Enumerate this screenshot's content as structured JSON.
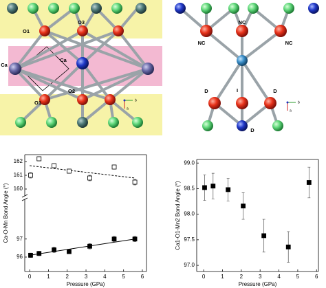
{
  "structures": [
    {
      "labels": [
        "O1",
        "O3",
        "Ca",
        "Ca",
        "O2",
        "O1"
      ],
      "axis_labels": [
        "b",
        "a"
      ]
    },
    {
      "labels": [
        "NC",
        "NC",
        "NC",
        "I",
        "D",
        "D",
        "D"
      ],
      "axis_labels": [
        "b",
        "a"
      ]
    }
  ],
  "chart_data": [
    {
      "type": "scatter",
      "xlabel": "Pressure (GPa)",
      "ylabel": "Ca-O-Mn Bond Angle (°)",
      "xlim": [
        -0.26,
        6.22
      ],
      "xticks": [
        0,
        1,
        2,
        3,
        4,
        5,
        6
      ],
      "y_segments": [
        {
          "ylim": [
            159.5,
            162.5
          ],
          "yticks": [
            160,
            161,
            162
          ]
        },
        {
          "ylim": [
            95.2,
            99.2
          ],
          "yticks": [
            96,
            97
          ]
        }
      ],
      "series": [
        {
          "marker": "open-square",
          "color": "#000000",
          "segment": 0,
          "x": [
            0.05,
            0.5,
            1.3,
            2.1,
            3.2,
            4.5,
            5.6
          ],
          "values": [
            161.0,
            162.2,
            161.7,
            161.3,
            160.8,
            161.6,
            160.5
          ],
          "errors": [
            0.2,
            0.15,
            0.15,
            0.15,
            0.2,
            0.15,
            0.2
          ],
          "fit": {
            "style": "dashed",
            "x": [
              0,
              5.6
            ],
            "values": [
              161.7,
              160.8
            ]
          }
        },
        {
          "marker": "filled-square",
          "color": "#000000",
          "segment": 1,
          "x": [
            0.05,
            0.5,
            1.3,
            2.1,
            3.2,
            4.5,
            5.6
          ],
          "values": [
            96.1,
            96.2,
            96.4,
            96.3,
            96.6,
            97.0,
            97.0
          ],
          "errors": [
            0.12,
            0.12,
            0.15,
            0.1,
            0.15,
            0.15,
            0.15
          ],
          "fit": {
            "style": "solid",
            "x": [
              0,
              5.6
            ],
            "values": [
              96.1,
              97.0
            ]
          }
        }
      ]
    },
    {
      "type": "scatter",
      "xlabel": "Pressure (GPa)",
      "ylabel": "Ca1-O1-Mn2 Bond Angle (°)",
      "xlim": [
        -0.37,
        6.1
      ],
      "xticks": [
        0,
        1,
        2,
        3,
        4,
        5,
        6
      ],
      "ylim": [
        96.88,
        99.07
      ],
      "yticks": [
        {
          "value": 97,
          "label": "97.0"
        },
        {
          "value": 97.5,
          "label": "97.5"
        },
        {
          "value": 98,
          "label": "98.0"
        },
        {
          "value": 98.5,
          "label": "98.5"
        },
        {
          "value": 99,
          "label": "99.0"
        }
      ],
      "series": [
        {
          "marker": "filled-square",
          "color": "#000000",
          "x": [
            0.05,
            0.5,
            1.3,
            2.1,
            3.2,
            4.5,
            5.6
          ],
          "values": [
            98.52,
            98.55,
            98.48,
            98.16,
            97.58,
            97.36,
            98.62
          ],
          "errors": [
            0.25,
            0.25,
            0.22,
            0.26,
            0.32,
            0.3,
            0.3
          ]
        }
      ]
    }
  ]
}
